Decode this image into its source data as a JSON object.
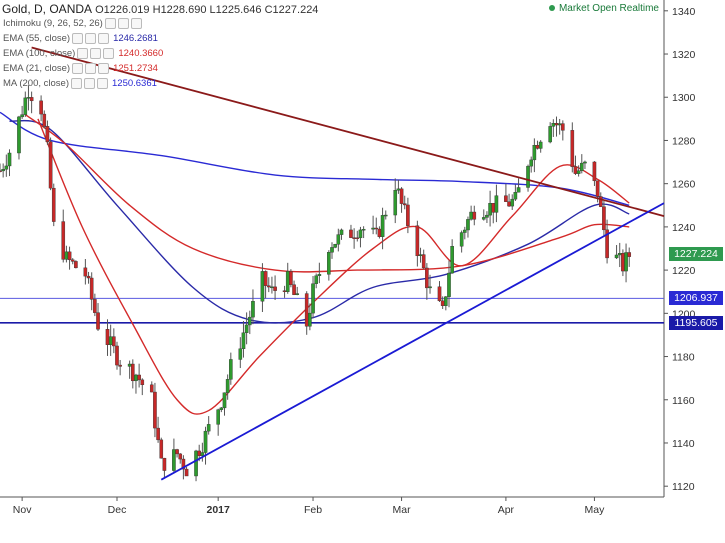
{
  "header": {
    "symbol": "Gold, D, OANDA",
    "ohlc_o_label": "O",
    "ohlc_o": "1226.019",
    "ohlc_h_label": "H",
    "ohlc_h": "1228.690",
    "ohlc_l_label": "L",
    "ohlc_l": "1225.646",
    "ohlc_c_label": "C",
    "ohlc_c": "1227.224",
    "status": "Market Open Realtime"
  },
  "indicators": [
    {
      "label": "Ichimoku (9, 26, 52, 26)",
      "value": "",
      "color": "#9aa4b5"
    },
    {
      "label": "EMA (55, close)",
      "value": "1246.2681",
      "color": "#2a2aa8"
    },
    {
      "label": "EMA (100, close)",
      "value": "1240.3660",
      "color": "#d42a2a"
    },
    {
      "label": "EMA (21, close)",
      "value": "1251.2734",
      "color": "#d42a2a"
    },
    {
      "label": "MA (200, close)",
      "value": "1250.6361",
      "color": "#2a2ad4"
    }
  ],
  "price_tags": [
    {
      "value": 1227.224,
      "text": "1227.224",
      "bg": "#2e9a4f",
      "fg": "#ffffff"
    },
    {
      "value": 1206.937,
      "text": "1206.937",
      "bg": "#2a2ad4",
      "fg": "#ffffff"
    },
    {
      "value": 1195.605,
      "text": "1195.605",
      "bg": "#1a1aa8",
      "fg": "#ffffff"
    }
  ],
  "chart_data": {
    "type": "candlestick",
    "title": "Gold, D, OANDA",
    "ylim": [
      1115,
      1345
    ],
    "y_ticks": [
      1120,
      1140,
      1160,
      1180,
      1200,
      1220,
      1240,
      1260,
      1280,
      1300,
      1320,
      1340
    ],
    "x_tick_labels": [
      {
        "label": "Nov",
        "date": "2016-11-01"
      },
      {
        "label": "Dec",
        "date": "2016-12-01"
      },
      {
        "label": "2017",
        "date": "2017-01-02"
      },
      {
        "label": "Feb",
        "date": "2017-02-01"
      },
      {
        "label": "Mar",
        "date": "2017-03-01"
      },
      {
        "label": "Apr",
        "date": "2017-04-03"
      },
      {
        "label": "May",
        "date": "2017-05-01"
      }
    ],
    "xlim": [
      "2016-10-25",
      "2017-05-23"
    ],
    "anchors": [
      [
        "2016-10-25",
        1266
      ],
      [
        "2016-10-28",
        1275
      ],
      [
        "2016-11-03",
        1304
      ],
      [
        "2016-11-07",
        1295
      ],
      [
        "2016-11-09",
        1275
      ],
      [
        "2016-11-11",
        1240
      ],
      [
        "2016-11-15",
        1225
      ],
      [
        "2016-11-21",
        1218
      ],
      [
        "2016-11-25",
        1195
      ],
      [
        "2016-11-29",
        1185
      ],
      [
        "2016-12-02",
        1178
      ],
      [
        "2016-12-07",
        1172
      ],
      [
        "2016-12-12",
        1160
      ],
      [
        "2016-12-15",
        1130
      ],
      [
        "2016-12-20",
        1135
      ],
      [
        "2016-12-23",
        1128
      ],
      [
        "2016-12-28",
        1140
      ],
      [
        "2017-01-03",
        1160
      ],
      [
        "2017-01-06",
        1175
      ],
      [
        "2017-01-11",
        1195
      ],
      [
        "2017-01-16",
        1215
      ],
      [
        "2017-01-19",
        1210
      ],
      [
        "2017-01-24",
        1215
      ],
      [
        "2017-01-30",
        1195
      ],
      [
        "2017-02-01",
        1210
      ],
      [
        "2017-02-06",
        1232
      ],
      [
        "2017-02-10",
        1235
      ],
      [
        "2017-02-16",
        1240
      ],
      [
        "2017-02-21",
        1235
      ],
      [
        "2017-02-27",
        1260
      ],
      [
        "2017-03-01",
        1250
      ],
      [
        "2017-03-06",
        1230
      ],
      [
        "2017-03-10",
        1210
      ],
      [
        "2017-03-14",
        1200
      ],
      [
        "2017-03-17",
        1230
      ],
      [
        "2017-03-24",
        1248
      ],
      [
        "2017-03-31",
        1250
      ],
      [
        "2017-04-06",
        1252
      ],
      [
        "2017-04-11",
        1275
      ],
      [
        "2017-04-17",
        1290
      ],
      [
        "2017-04-21",
        1285
      ],
      [
        "2017-04-25",
        1265
      ],
      [
        "2017-04-28",
        1268
      ],
      [
        "2017-05-02",
        1256
      ],
      [
        "2017-05-05",
        1230
      ],
      [
        "2017-05-10",
        1222
      ],
      [
        "2017-05-12",
        1227
      ]
    ],
    "trendlines": [
      {
        "name": "resistance",
        "color": "#8b1a1a",
        "from": [
          "2016-11-04",
          1323
        ],
        "to": [
          "2017-05-23",
          1245
        ]
      },
      {
        "name": "support",
        "color": "#1a1ad4",
        "from": [
          "2016-12-15",
          1123
        ],
        "to": [
          "2017-05-23",
          1251
        ]
      }
    ],
    "horizontal_lines": [
      {
        "value": 1206.937,
        "color": "#5a5ae0"
      },
      {
        "value": 1195.605,
        "color": "#1a1aa8"
      }
    ],
    "ma_series": [
      {
        "name": "MA (200, close)",
        "color": "#2a2ad4",
        "points": [
          [
            "2016-10-25",
            1293
          ],
          [
            "2016-11-10",
            1280
          ],
          [
            "2016-12-15",
            1273
          ],
          [
            "2017-01-20",
            1264
          ],
          [
            "2017-02-20",
            1262
          ],
          [
            "2017-03-20",
            1261
          ],
          [
            "2017-04-20",
            1258
          ],
          [
            "2017-05-12",
            1250
          ]
        ]
      },
      {
        "name": "EMA (55, close)",
        "color": "#2a2aa8",
        "points": [
          [
            "2016-10-28",
            1289
          ],
          [
            "2016-11-10",
            1285
          ],
          [
            "2016-12-01",
            1250
          ],
          [
            "2016-12-25",
            1212
          ],
          [
            "2017-01-12",
            1197
          ],
          [
            "2017-02-01",
            1198
          ],
          [
            "2017-02-20",
            1212
          ],
          [
            "2017-03-15",
            1218
          ],
          [
            "2017-04-10",
            1232
          ],
          [
            "2017-05-01",
            1250
          ],
          [
            "2017-05-12",
            1246
          ]
        ]
      },
      {
        "name": "EMA (100, close)",
        "color": "#d42a2a",
        "points": [
          [
            "2016-11-02",
            1292
          ],
          [
            "2016-11-15",
            1278
          ],
          [
            "2016-12-05",
            1250
          ],
          [
            "2016-12-25",
            1230
          ],
          [
            "2017-01-20",
            1220
          ],
          [
            "2017-02-15",
            1220
          ],
          [
            "2017-03-20",
            1222
          ],
          [
            "2017-04-20",
            1235
          ],
          [
            "2017-05-01",
            1241
          ],
          [
            "2017-05-12",
            1240
          ]
        ]
      },
      {
        "name": "EMA (21, close)",
        "color": "#d42a2a",
        "points": [
          [
            "2016-11-06",
            1290
          ],
          [
            "2016-11-20",
            1240
          ],
          [
            "2016-12-06",
            1195
          ],
          [
            "2016-12-20",
            1160
          ],
          [
            "2016-12-30",
            1155
          ],
          [
            "2017-01-15",
            1180
          ],
          [
            "2017-02-01",
            1205
          ],
          [
            "2017-02-20",
            1230
          ],
          [
            "2017-03-06",
            1240
          ],
          [
            "2017-03-20",
            1222
          ],
          [
            "2017-04-05",
            1245
          ],
          [
            "2017-04-20",
            1268
          ],
          [
            "2017-05-02",
            1262
          ],
          [
            "2017-05-12",
            1251
          ]
        ]
      }
    ],
    "grid": false,
    "legend": "top-left"
  }
}
